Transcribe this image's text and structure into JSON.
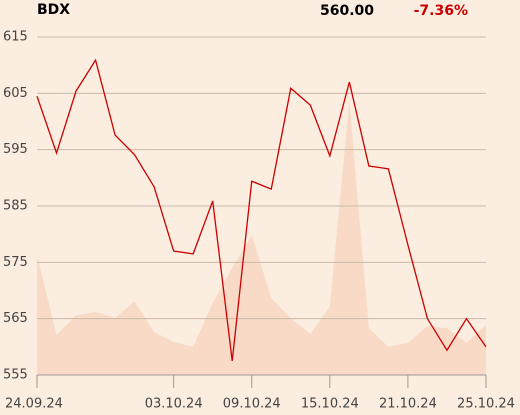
{
  "header": {
    "ticker": "BDX",
    "last": "560.00",
    "change": "-7.36%"
  },
  "chart_data": {
    "type": "line",
    "categories": [
      "24.09.24",
      null,
      null,
      null,
      null,
      null,
      null,
      "03.10.24",
      null,
      null,
      null,
      "09.10.24",
      null,
      null,
      null,
      "15.10.24",
      null,
      null,
      null,
      "21.10.24",
      null,
      null,
      null,
      "25.10.24"
    ],
    "series": [
      {
        "color": "#f8dac6",
        "kind": "area",
        "values": [
          576.3,
          562.1,
          565.6,
          566.2,
          565.1,
          568.1,
          562.6,
          560.9,
          560.0,
          567.8,
          574.0,
          579.8,
          568.7,
          565.0,
          562.3,
          567.1,
          603.5,
          563.3,
          560.0,
          560.7,
          563.7,
          563.3,
          560.7,
          563.9
        ]
      },
      {
        "color": "#cc0000",
        "kind": "line",
        "values": [
          604.5,
          594.4,
          605.4,
          610.9,
          597.6,
          594.1,
          588.4,
          577.0,
          576.5,
          585.9,
          557.5,
          589.4,
          588.0,
          605.9,
          602.9,
          593.9,
          607.0,
          592.1,
          591.6,
          578.1,
          565.0,
          559.4,
          565.0,
          560.0
        ]
      }
    ],
    "ylim": [
      555,
      615
    ],
    "yticks": [
      555,
      565,
      575,
      585,
      595,
      605,
      615
    ],
    "grid": true
  }
}
